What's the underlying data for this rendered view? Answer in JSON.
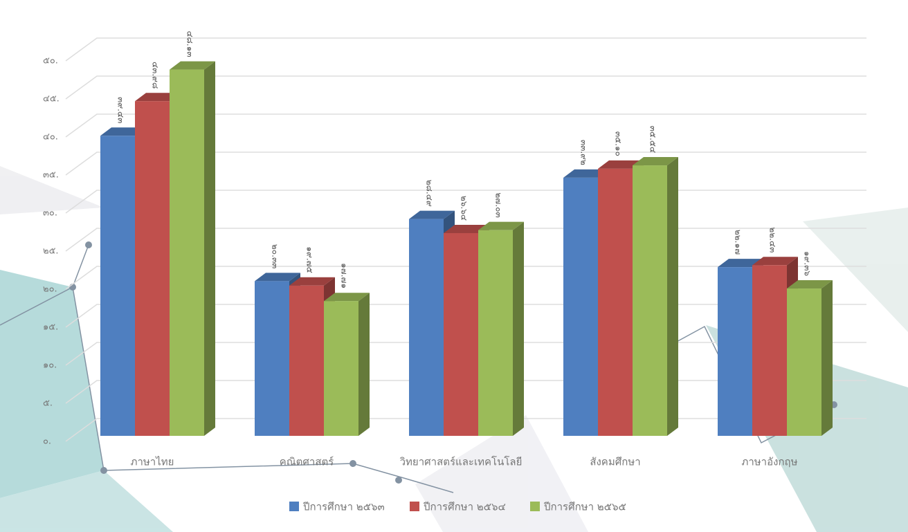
{
  "chart_data": {
    "type": "bar3d",
    "categories": [
      "ภาษาไทย",
      "คณิตศาสตร์",
      "วิทยาศาสตร์และเทคโนโลยี",
      "สังคมศึกษา",
      "ภาษาอังกฤษ"
    ],
    "series": [
      {
        "name": "ปีการศึกษา ๒๕๖๓",
        "color": "#4f7fc0",
        "values": [
          39.43,
          20.33,
          28.49,
          33.92,
          22.17
        ],
        "value_labels": [
          "๓๙.๔๓",
          "๒๐.๓๓",
          "๒๘.๔๙",
          "๓๓.๙๒",
          "๒๒.๑๗"
        ]
      },
      {
        "name": "ปีการศึกษา ๒๕๖๔",
        "color": "#c0504d",
        "values": [
          43.98,
          19.75,
          26.64,
          35.1,
          22.43
        ],
        "value_labels": [
          "๔๓.๙๘",
          "๑๙.๗๕",
          "๒๖.๖๔",
          "๓๕.๑๐",
          "๒๒.๔๓"
        ]
      },
      {
        "name": "ปีการศึกษา ๒๕๖๕",
        "color": "#9bbb59",
        "values": [
          48.13,
          17.71,
          27.03,
          35.54,
          19.36
        ],
        "value_labels": [
          "๔๘.๑๓",
          "๑๗.๗๑",
          "๒๗.๐๓",
          "๓๕.๕๔",
          "๑๙.๓๖"
        ]
      }
    ],
    "ylim": [
      0,
      50
    ],
    "yticks": [
      {
        "value": 0,
        "label": "๐."
      },
      {
        "value": 5,
        "label": "๕."
      },
      {
        "value": 10,
        "label": "๑๐."
      },
      {
        "value": 15,
        "label": "๑๕."
      },
      {
        "value": 20,
        "label": "๒๐."
      },
      {
        "value": 25,
        "label": "๒๕."
      },
      {
        "value": 30,
        "label": "๓๐."
      },
      {
        "value": 35,
        "label": "๓๕."
      },
      {
        "value": 40,
        "label": "๔๐."
      },
      {
        "value": 45,
        "label": "๔๕."
      },
      {
        "value": 50,
        "label": "๕๐."
      }
    ],
    "grid": true
  }
}
